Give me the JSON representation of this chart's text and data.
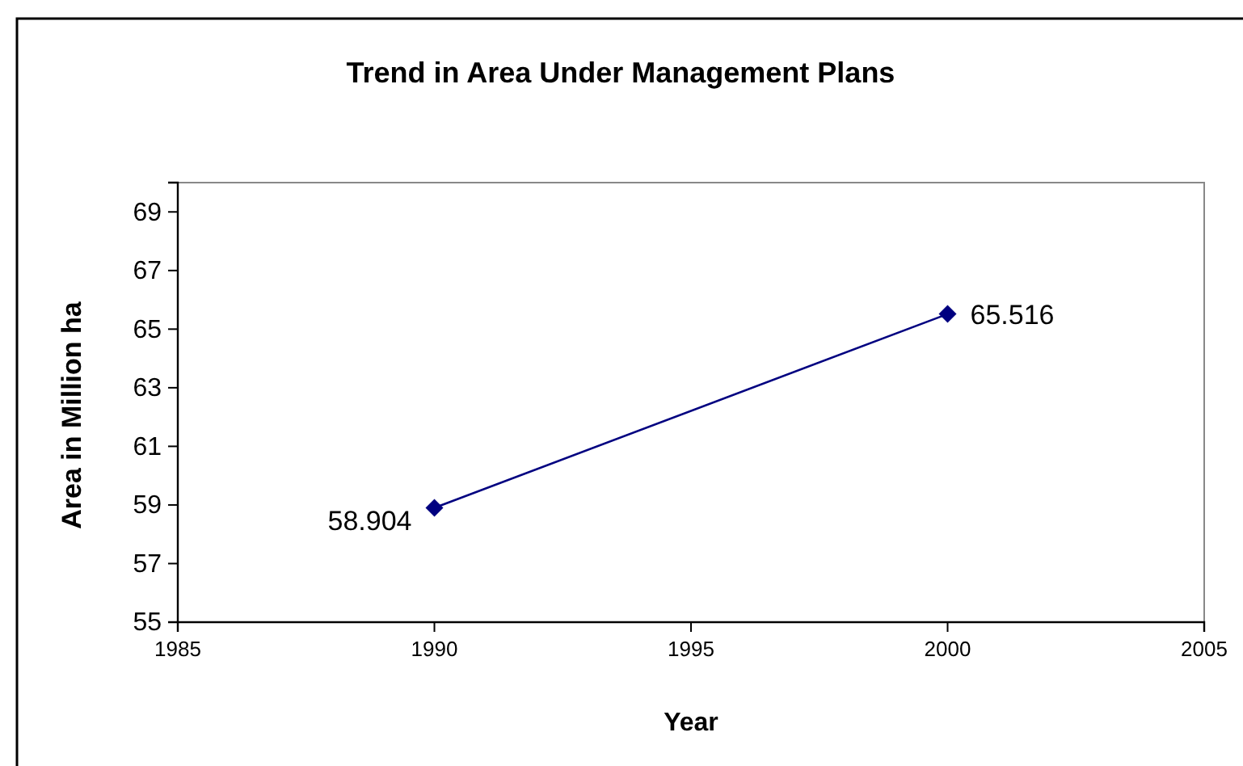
{
  "chart_data": {
    "type": "line",
    "title": "Trend in Area Under Management Plans",
    "xlabel": "Year",
    "ylabel": "Area in Million ha",
    "x": [
      1990,
      2000
    ],
    "series": [
      {
        "color": "#000080",
        "values": [
          58.904,
          65.516
        ]
      }
    ],
    "xlim": [
      1985,
      2005
    ],
    "xticks": [
      1985,
      1990,
      1995,
      2000,
      2005
    ],
    "ylim": [
      55,
      70
    ],
    "yticks": [
      55,
      57,
      59,
      61,
      63,
      65,
      67,
      69
    ],
    "grid": false,
    "marker": "diamond",
    "line_style": "solid",
    "data_labels": true
  }
}
